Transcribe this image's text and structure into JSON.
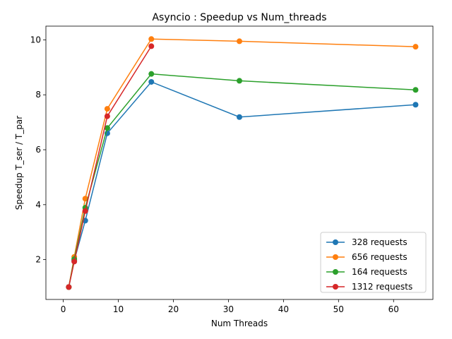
{
  "chart_data": {
    "type": "line",
    "title": "Asyncio : Speedup vs Num_threads",
    "xlabel": "Num Threads",
    "ylabel": "Speedup T_ser / T_par",
    "xlim": [
      -3.15,
      67.15
    ],
    "ylim": [
      0.55,
      10.5
    ],
    "xticks": [
      0,
      10,
      20,
      30,
      40,
      50,
      60
    ],
    "yticks": [
      2,
      4,
      6,
      8,
      10
    ],
    "grid": false,
    "legend_position": "lower-right",
    "series": [
      {
        "name": "328 requests",
        "color": "#1f77b4",
        "points": [
          [
            1,
            1.0
          ],
          [
            2,
            1.97
          ],
          [
            4,
            3.42
          ],
          [
            8,
            6.6
          ],
          [
            16,
            8.47
          ],
          [
            32,
            7.19
          ],
          [
            64,
            7.64
          ]
        ]
      },
      {
        "name": "656 requests",
        "color": "#ff7f0e",
        "points": [
          [
            1,
            1.0
          ],
          [
            2,
            2.1
          ],
          [
            4,
            4.22
          ],
          [
            8,
            7.49
          ],
          [
            16,
            10.03
          ],
          [
            32,
            9.95
          ],
          [
            64,
            9.75
          ]
        ]
      },
      {
        "name": "164 requests",
        "color": "#2ca02c",
        "points": [
          [
            1,
            1.0
          ],
          [
            2,
            2.02
          ],
          [
            4,
            3.89
          ],
          [
            8,
            6.79
          ],
          [
            16,
            8.76
          ],
          [
            32,
            8.51
          ],
          [
            64,
            8.18
          ]
        ]
      },
      {
        "name": "1312 requests",
        "color": "#d62728",
        "points": [
          [
            1,
            1.0
          ],
          [
            2,
            1.93
          ],
          [
            4,
            3.77
          ],
          [
            8,
            7.22
          ],
          [
            16,
            9.77
          ]
        ]
      }
    ]
  }
}
